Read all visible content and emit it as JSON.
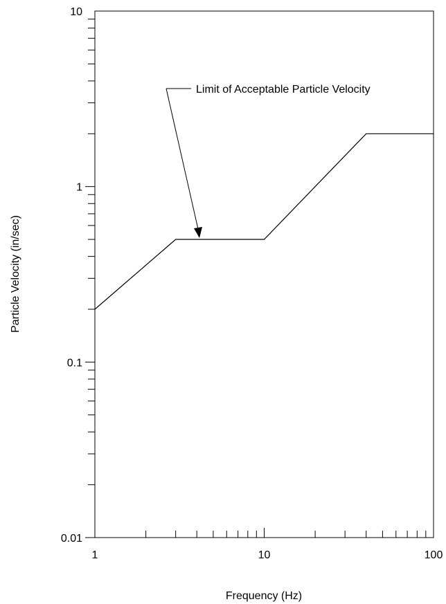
{
  "chart_data": {
    "type": "line",
    "title": "",
    "xlabel": "Frequency (Hz)",
    "ylabel": "Particle Velocity (in/sec)",
    "xscale": "log",
    "yscale": "log",
    "xlim": [
      1,
      100
    ],
    "ylim": [
      0.01,
      10
    ],
    "x_tick_labels": [
      {
        "value": 1,
        "label": "1"
      },
      {
        "value": 10,
        "label": "10"
      },
      {
        "value": 100,
        "label": "100"
      }
    ],
    "y_tick_labels": [
      {
        "value": 0.01,
        "label": "0.01"
      },
      {
        "value": 0.1,
        "label": "0.1"
      },
      {
        "value": 1,
        "label": "1"
      },
      {
        "value": 10,
        "label": "10"
      }
    ],
    "grid": false,
    "legend": "none",
    "series": [
      {
        "x": [
          1,
          3,
          10,
          40,
          100
        ],
        "y": [
          0.2,
          0.5,
          0.5,
          2,
          2
        ],
        "color": "#000000"
      }
    ],
    "annotations": [
      {
        "text": "Limit of Acceptable Particle Velocity",
        "points_to": {
          "x": 4.2,
          "y": 0.5
        }
      }
    ]
  }
}
